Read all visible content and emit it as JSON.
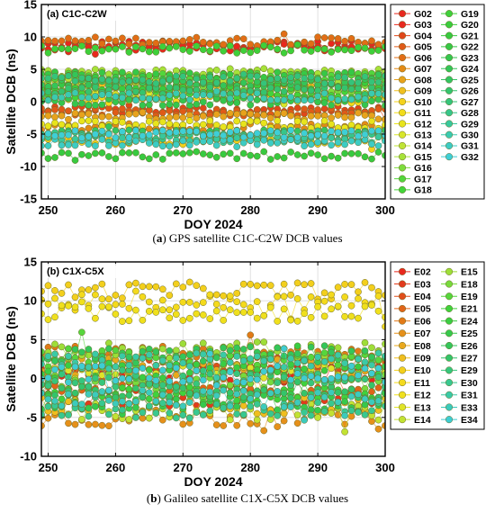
{
  "chart_data": [
    {
      "type": "line",
      "panel_label": "(a) C1C-C2W",
      "caption_prefix": "a",
      "caption_text": "GPS satellite C1C-C2W DCB values",
      "xlabel": "DOY 2024",
      "ylabel": "Satellite DCB (ns)",
      "xlim": [
        249,
        300
      ],
      "ylim": [
        -15,
        15
      ],
      "xticks": [
        250,
        260,
        270,
        280,
        290,
        300
      ],
      "yticks": [
        -15,
        -10,
        -5,
        0,
        5,
        10,
        15
      ],
      "grid": true,
      "legend_placement": "right",
      "series": [
        {
          "name": "G02",
          "color": "#e8281e",
          "level": 8.8
        },
        {
          "name": "G03",
          "color": "#e8281e",
          "level": 8.3
        },
        {
          "name": "G04",
          "color": "#e0471a",
          "level": -1.3
        },
        {
          "name": "G05",
          "color": "#e05a18",
          "level": -1.6
        },
        {
          "name": "G06",
          "color": "#e26d16",
          "level": 9.4
        },
        {
          "name": "G07",
          "color": "#e38a16",
          "level": -4.0
        },
        {
          "name": "G08",
          "color": "#e8a21c",
          "level": -2.2
        },
        {
          "name": "G09",
          "color": "#f0c020",
          "level": 2.6
        },
        {
          "name": "G10",
          "color": "#f4d21c",
          "level": -6.0
        },
        {
          "name": "G11",
          "color": "#f2dc1a",
          "level": 0.4
        },
        {
          "name": "G12",
          "color": "#e8e41c",
          "level": -3.5
        },
        {
          "name": "G13",
          "color": "#d8e62a",
          "level": 1.4
        },
        {
          "name": "G14",
          "color": "#bfe434",
          "level": 3.1
        },
        {
          "name": "G15",
          "color": "#a6e238",
          "level": 4.5
        },
        {
          "name": "G16",
          "color": "#7ddc3c",
          "level": 2.0
        },
        {
          "name": "G17",
          "color": "#52d63c",
          "level": 3.8
        },
        {
          "name": "G18",
          "color": "#42d43a",
          "level": 1.0
        },
        {
          "name": "G19",
          "color": "#3ed03a",
          "level": 8.1
        },
        {
          "name": "G20",
          "color": "#3acd3c",
          "level": 2.4
        },
        {
          "name": "G21",
          "color": "#38ca40",
          "level": -8.3
        },
        {
          "name": "G22",
          "color": "#36c846",
          "level": 4.0
        },
        {
          "name": "G23",
          "color": "#34c64e",
          "level": 0.0
        },
        {
          "name": "G24",
          "color": "#34c558",
          "level": 2.9
        },
        {
          "name": "G25",
          "color": "#34c462",
          "level": -4.9
        },
        {
          "name": "G26",
          "color": "#34c46e",
          "level": 1.7
        },
        {
          "name": "G27",
          "color": "#34c47a",
          "level": 3.4
        },
        {
          "name": "G28",
          "color": "#36c68a",
          "level": -5.3
        },
        {
          "name": "G29",
          "color": "#38c89c",
          "level": -5.8
        },
        {
          "name": "G30",
          "color": "#3acbb0",
          "level": 0.8
        },
        {
          "name": "G31",
          "color": "#3cccc4",
          "level": -6.4
        },
        {
          "name": "G32",
          "color": "#3ecfd6",
          "level": -5.0
        }
      ]
    },
    {
      "type": "line",
      "panel_label": "(b) C1X-C5X",
      "caption_prefix": "b",
      "caption_text": "Galileo satellite C1X-C5X DCB values",
      "xlabel": "DOY 2024",
      "ylabel": "Satellite DCB (ns)",
      "xlim": [
        249,
        300
      ],
      "ylim": [
        -10,
        15
      ],
      "xticks": [
        250,
        260,
        270,
        280,
        290,
        300
      ],
      "yticks": [
        -10,
        -5,
        0,
        5,
        10,
        15
      ],
      "grid": true,
      "legend_placement": "right",
      "series": [
        {
          "name": "E02",
          "color": "#e8281e",
          "level": 0.5
        },
        {
          "name": "E03",
          "color": "#e23a1c",
          "level": -2.6
        },
        {
          "name": "E04",
          "color": "#e04e1a",
          "level": 2.0
        },
        {
          "name": "E05",
          "color": "#e06418",
          "level": -1.0
        },
        {
          "name": "E06",
          "color": "#e27a18",
          "level": 3.1
        },
        {
          "name": "E07",
          "color": "#e6901a",
          "level": -5.1
        },
        {
          "name": "E08",
          "color": "#eaa81c",
          "level": 1.5
        },
        {
          "name": "E09",
          "color": "#f0be1e",
          "level": -3.5
        },
        {
          "name": "E10",
          "color": "#f3cf1c",
          "level": 11.3
        },
        {
          "name": "E11",
          "color": "#f4da1c",
          "level": 9.8
        },
        {
          "name": "E12",
          "color": "#f0e01c",
          "level": 8.4
        },
        {
          "name": "E13",
          "color": "#e0e428",
          "level": 0.9
        },
        {
          "name": "E14",
          "color": "#c2e232",
          "level": -4.3
        },
        {
          "name": "E15",
          "color": "#9ede38",
          "level": 3.6
        },
        {
          "name": "E18",
          "color": "#78da3c",
          "level": -0.4
        },
        {
          "name": "E19",
          "color": "#56d63c",
          "level": 2.6
        },
        {
          "name": "E21",
          "color": "#40d23c",
          "level": -2.0
        },
        {
          "name": "E24",
          "color": "#3acd42",
          "level": 1.1
        },
        {
          "name": "E25",
          "color": "#36c94c",
          "level": -3.0
        },
        {
          "name": "E26",
          "color": "#34c65a",
          "level": 3.0
        },
        {
          "name": "E27",
          "color": "#34c46a",
          "level": -1.5
        },
        {
          "name": "E29",
          "color": "#36c67c",
          "level": 0.0
        },
        {
          "name": "E30",
          "color": "#38c890",
          "level": -4.0
        },
        {
          "name": "E31",
          "color": "#3acaa6",
          "level": 2.2
        },
        {
          "name": "E33",
          "color": "#3ccbbc",
          "level": -2.6
        },
        {
          "name": "E34",
          "color": "#3ecdd2",
          "level": 0.6
        }
      ]
    }
  ]
}
